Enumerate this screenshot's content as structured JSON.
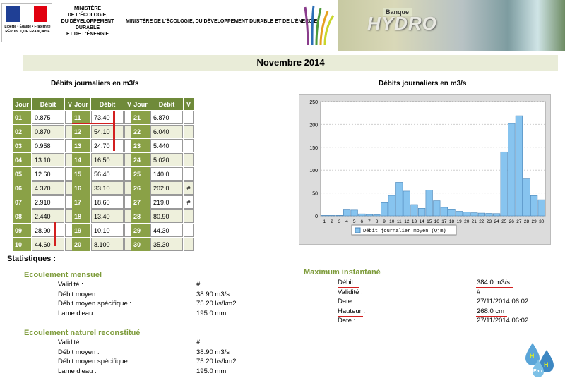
{
  "header": {
    "republic_motto": "Liberté • Égalité • Fraternité",
    "republic_name": "RÉPUBLIQUE FRANÇAISE",
    "ministry_short": "MINISTÈRE\nDE L'ÉCOLOGIE,\nDU DÉVELOPPEMENT\nDURABLE\nET DE L'ÉNERGIE",
    "ministry_full": "MINISTÈRE DE L'ÉCOLOGIE, DU DÉVELOPPEMENT DURABLE ET DE L'ÉNERGIE",
    "banque_label": "Banque",
    "hydro_label": "HYDRO"
  },
  "month_title": "Novembre 2014",
  "table_title": "Débits journaliers en m3/s",
  "chart_title": "Débits journaliers en m3/s",
  "table_headers": {
    "jour": "Jour",
    "debit": "Débit",
    "v": "V"
  },
  "days": [
    {
      "jour": "01",
      "debit": "0.875",
      "v": ""
    },
    {
      "jour": "02",
      "debit": "0.870",
      "v": ""
    },
    {
      "jour": "03",
      "debit": "0.958",
      "v": ""
    },
    {
      "jour": "04",
      "debit": "13.10",
      "v": ""
    },
    {
      "jour": "05",
      "debit": "12.60",
      "v": ""
    },
    {
      "jour": "06",
      "debit": "4.370",
      "v": ""
    },
    {
      "jour": "07",
      "debit": "2.910",
      "v": ""
    },
    {
      "jour": "08",
      "debit": "2.440",
      "v": ""
    },
    {
      "jour": "09",
      "debit": "28.90",
      "v": ""
    },
    {
      "jour": "10",
      "debit": "44.60",
      "v": ""
    },
    {
      "jour": "11",
      "debit": "73.40",
      "v": ""
    },
    {
      "jour": "12",
      "debit": "54.10",
      "v": ""
    },
    {
      "jour": "13",
      "debit": "24.70",
      "v": ""
    },
    {
      "jour": "14",
      "debit": "16.50",
      "v": ""
    },
    {
      "jour": "15",
      "debit": "56.40",
      "v": ""
    },
    {
      "jour": "16",
      "debit": "33.10",
      "v": ""
    },
    {
      "jour": "17",
      "debit": "18.60",
      "v": ""
    },
    {
      "jour": "18",
      "debit": "13.40",
      "v": ""
    },
    {
      "jour": "19",
      "debit": "10.10",
      "v": ""
    },
    {
      "jour": "20",
      "debit": "8.100",
      "v": ""
    },
    {
      "jour": "21",
      "debit": "6.870",
      "v": ""
    },
    {
      "jour": "22",
      "debit": "6.040",
      "v": ""
    },
    {
      "jour": "23",
      "debit": "5.440",
      "v": ""
    },
    {
      "jour": "24",
      "debit": "5.020",
      "v": ""
    },
    {
      "jour": "25",
      "debit": "140.0",
      "v": ""
    },
    {
      "jour": "26",
      "debit": "202.0",
      "v": "#"
    },
    {
      "jour": "27",
      "debit": "219.0",
      "v": "#"
    },
    {
      "jour": "28",
      "debit": "80.90",
      "v": ""
    },
    {
      "jour": "29",
      "debit": "44.30",
      "v": ""
    },
    {
      "jour": "30",
      "debit": "35.30",
      "v": ""
    }
  ],
  "chart_data": {
    "type": "bar",
    "categories": [
      "1",
      "2",
      "3",
      "4",
      "5",
      "6",
      "7",
      "8",
      "9",
      "10",
      "11",
      "12",
      "13",
      "14",
      "15",
      "16",
      "17",
      "18",
      "19",
      "20",
      "21",
      "22",
      "23",
      "24",
      "25",
      "26",
      "27",
      "28",
      "29",
      "30"
    ],
    "series": [
      {
        "name": "Débit journalier moyen (Qjm)",
        "values": [
          0.875,
          0.87,
          0.958,
          13.1,
          12.6,
          4.37,
          2.91,
          2.44,
          28.9,
          44.6,
          73.4,
          54.1,
          24.7,
          16.5,
          56.4,
          33.1,
          18.6,
          13.4,
          10.1,
          8.1,
          6.87,
          6.04,
          5.44,
          5.02,
          140.0,
          202.0,
          219.0,
          80.9,
          44.3,
          35.3
        ]
      }
    ],
    "yticks": [
      "0",
      "50",
      "100",
      "150",
      "200",
      "250"
    ],
    "ylim": [
      0,
      250
    ],
    "grid": true,
    "legend_position": "bottom",
    "bar_color": "#87c4ef",
    "bg_color": "#ffffff"
  },
  "stats": {
    "title": "Statistiques :",
    "mensuel": {
      "title": "Ecoulement mensuel",
      "rows": [
        {
          "label": "Validité :",
          "value": "#"
        },
        {
          "label": "Débit moyen :",
          "value": "38.90 m3/s"
        },
        {
          "label": "Débit moyen spécifique :",
          "value": "75.20 l/s/km2"
        },
        {
          "label": "Lame d'eau :",
          "value": "195.0 mm"
        }
      ]
    },
    "naturel": {
      "title": "Ecoulement naturel reconstitué",
      "rows": [
        {
          "label": "Validité :",
          "value": "#"
        },
        {
          "label": "Débit moyen :",
          "value": "38.90 m3/s"
        },
        {
          "label": "Débit moyen spécifique :",
          "value": "75.20 l/s/km2"
        },
        {
          "label": "Lame d'eau :",
          "value": "195.0 mm"
        }
      ]
    },
    "maximum": {
      "title": "Maximum instantané",
      "rows": [
        {
          "label": "Débit :",
          "value": "384.0 m3/s"
        },
        {
          "label": "Validité :",
          "value": "#"
        },
        {
          "label": "Date :",
          "value": "27/11/2014 06:02"
        },
        {
          "label": "Hauteur :",
          "value": "268.0 cm"
        },
        {
          "label": "Date :",
          "value": "27/11/2014 06:02"
        }
      ]
    }
  },
  "footer_logo": {
    "letters": [
      "H",
      "Eau",
      "H"
    ]
  },
  "colors": {
    "accent": "#7d9b3a",
    "header_cell": "#6f8a3a",
    "day_cell": "#8aa147",
    "highlight": "#d21f1f"
  }
}
